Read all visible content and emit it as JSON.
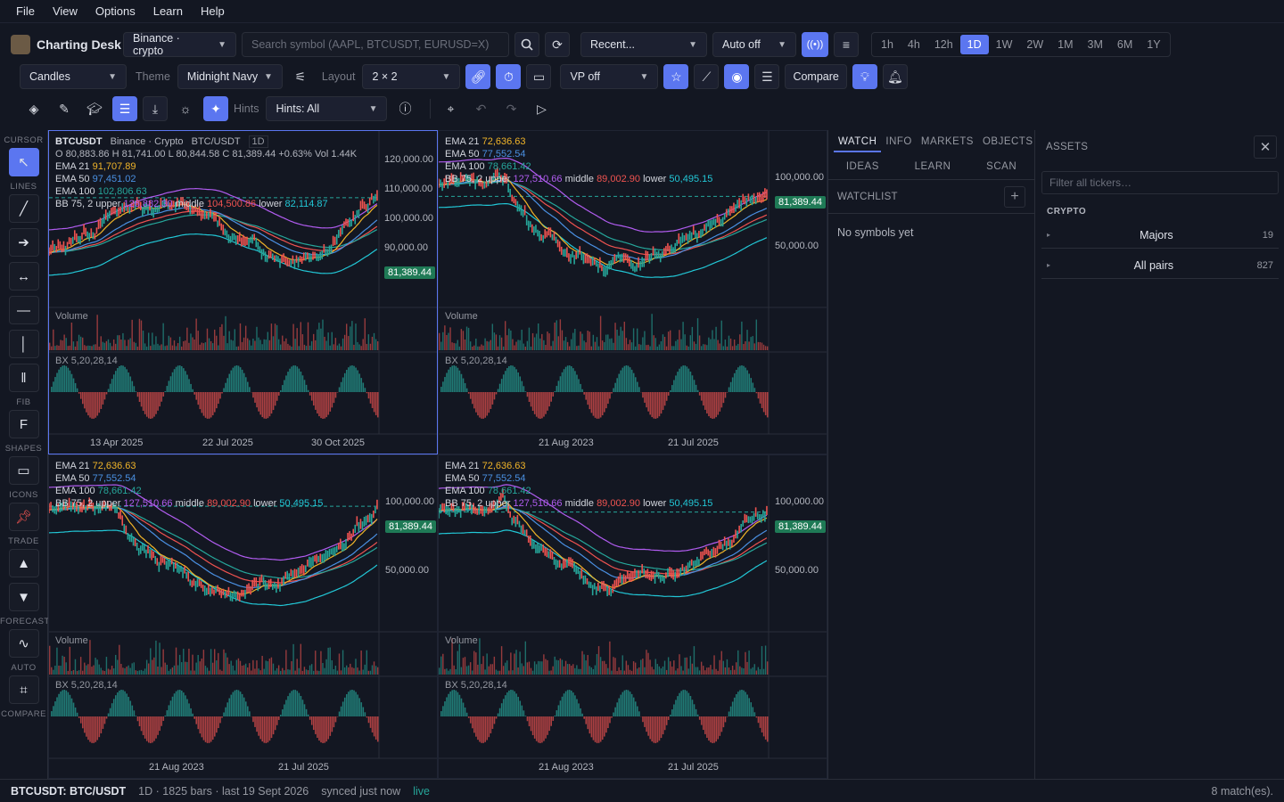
{
  "menu": [
    "File",
    "View",
    "Options",
    "Learn",
    "Help"
  ],
  "brand": "Charting Desk",
  "exchange": "Binance · crypto",
  "search_placeholder": "Search symbol (AAPL, BTCUSDT, EURUSD=X)",
  "recent": "Recent...",
  "auto": "Auto off",
  "timeframes": [
    "1h",
    "4h",
    "12h",
    "1D",
    "1W",
    "2W",
    "1M",
    "3M",
    "6M",
    "1Y"
  ],
  "active_tf": "1D",
  "chart_type": "Candles",
  "theme_label": "Theme",
  "theme": "Midnight Navy",
  "layout_label": "Layout",
  "layout": "2 × 2",
  "vp": "VP off",
  "compare": "Compare",
  "hints_label": "Hints",
  "hints": "Hints: All",
  "left_sections": {
    "cursor": "CURSOR",
    "lines": "LINES",
    "fib": "FIB",
    "shapes": "SHAPES",
    "icons": "ICONS",
    "trade": "TRADE",
    "forecast": "FORECAST",
    "auto": "AUTO",
    "compare": "COMPARE"
  },
  "fib_glyph": "F",
  "panes": [
    {
      "l1": "BTCUSDT",
      "l1b": "Binance · Crypto",
      "l1c": "BTC/USDT",
      "l1d": "1D",
      "ohlc": "O 80,883.86   H 81,741.00   L 80,844.58   C 81,389.44   +0.63%   Vol 1.44K",
      "ema21": "91,707.89",
      "ema50": "97,451.02",
      "ema100": "102,806.63",
      "bb_u": "126,882.30",
      "bb_m": "104,500.86",
      "bb_l": "82,114.87",
      "y": [
        "120,000.00",
        "110,000.00",
        "100,000.00",
        "90,000.00"
      ],
      "x": [
        "13 Apr 2025",
        "22 Jul 2025",
        "30 Oct 2025"
      ],
      "price": "81,389.44"
    },
    {
      "ema21": "72,636.63",
      "ema50": "77,552.54",
      "ema100": "78,661.42",
      "bb_u": "127,510.66",
      "bb_m": "89,002.90",
      "bb_l": "50,495.15",
      "y": [
        "100,000.00",
        "50,000.00"
      ],
      "x": [
        "21 Aug 2023",
        "21 Jul 2025"
      ],
      "price": "81,389.44"
    },
    {
      "ema21": "72,636.63",
      "ema50": "77,552.54",
      "ema100": "78,661.42",
      "bb_u": "127,510.66",
      "bb_m": "89,002.90",
      "bb_l": "50,495.15",
      "y": [
        "100,000.00",
        "50,000.00"
      ],
      "x": [
        "21 Aug 2023",
        "21 Jul 2025"
      ],
      "price": "81,389.44"
    },
    {
      "ema21": "72,636.63",
      "ema50": "77,552.54",
      "ema100": "78,661.42",
      "bb_u": "127,510.66",
      "bb_m": "89,002.90",
      "bb_l": "50,495.15",
      "y": [
        "100,000.00",
        "50,000.00"
      ],
      "x": [
        "21 Aug 2023",
        "21 Jul 2025"
      ],
      "price": "81,389.44"
    }
  ],
  "labels": {
    "ema21": "EMA 21",
    "ema50": "EMA 50",
    "ema100": "EMA 100",
    "bb": "BB 75, 2",
    "upper": "upper",
    "middle": "middle",
    "lower": "lower",
    "volume": "Volume",
    "bx": "BX 5,20,28,14"
  },
  "side_tabs": [
    "WATCH",
    "INFO",
    "MARKETS",
    "OBJECTS"
  ],
  "side_tabs2": [
    "IDEAS",
    "LEARN",
    "SCAN"
  ],
  "watchlist": "WATCHLIST",
  "empty": "No symbols yet",
  "assets": "ASSETS",
  "filter_placeholder": "Filter all tickers…",
  "category": "CRYPTO",
  "groups": [
    {
      "name": "Majors",
      "count": "19"
    },
    {
      "name": "All pairs",
      "count": "827"
    }
  ],
  "status": {
    "symbol": "BTCUSDT: BTC/USDT",
    "info": "1D · 1825 bars · last 19 Sept 2026",
    "sync": "synced just now",
    "live": "live",
    "matches": "8 match(es)."
  },
  "colors": {
    "accent": "#5b76f0",
    "ema21": "#f0b429",
    "ema50": "#4a90e2",
    "ema100": "#26a69a",
    "bb_upper": "#b15cf0",
    "bb_mid": "#ef5350",
    "bb_lower": "#22c7d6",
    "up": "#26a69a",
    "down": "#ef5350"
  }
}
